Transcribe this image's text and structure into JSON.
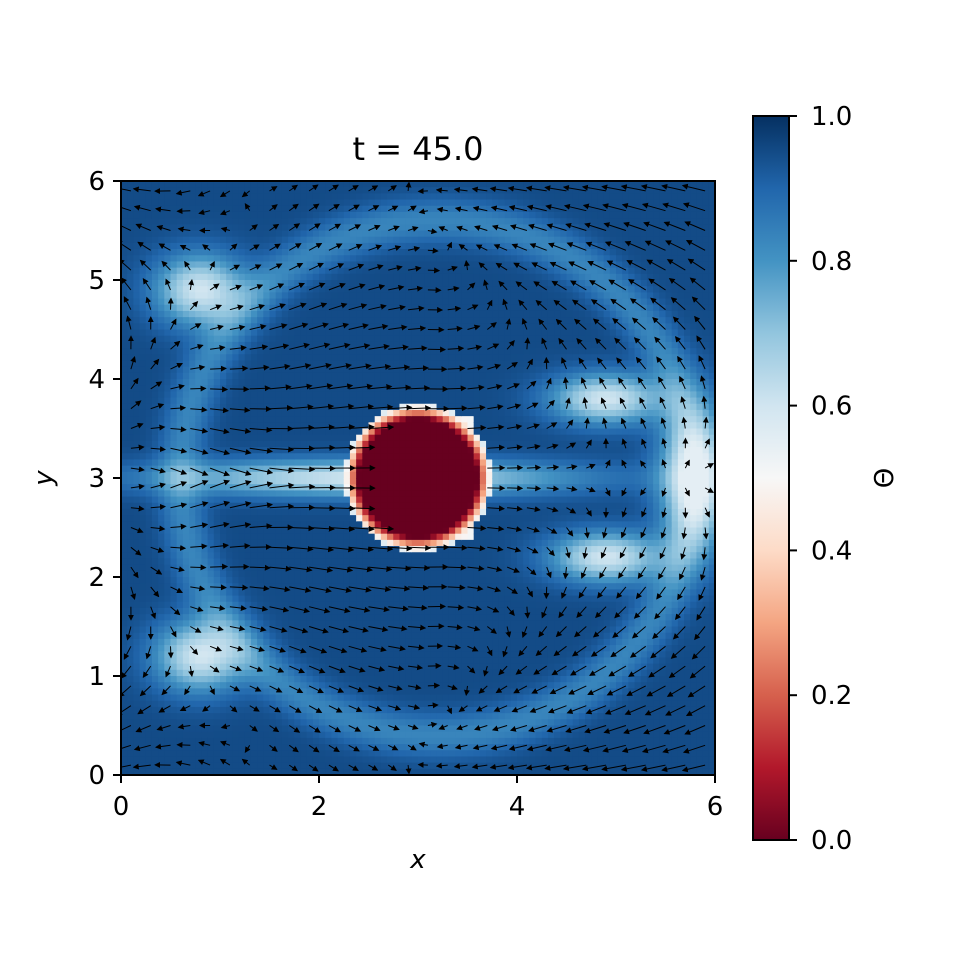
{
  "chart_data": {
    "type": "heatmap",
    "title": "t = 45.0",
    "xlabel": "x",
    "ylabel": "y",
    "xlim": [
      0,
      6
    ],
    "ylim": [
      0,
      6
    ],
    "x_ticks": [
      "0",
      "2",
      "4",
      "6"
    ],
    "y_ticks": [
      "0",
      "1",
      "2",
      "3",
      "4",
      "5",
      "6"
    ],
    "colorbar": {
      "label": "Θ",
      "range": [
        0,
        1
      ],
      "ticks": [
        "0.0",
        "0.2",
        "0.4",
        "0.6",
        "0.8",
        "1.0"
      ],
      "colormap": "RdBu"
    },
    "field_description": {
      "obstacle": {
        "center_x": 3.0,
        "center_y": 3.0,
        "radius": 0.55,
        "value": 0.0
      },
      "background_value": 0.95,
      "overlay": "velocity quiver arrows"
    }
  }
}
